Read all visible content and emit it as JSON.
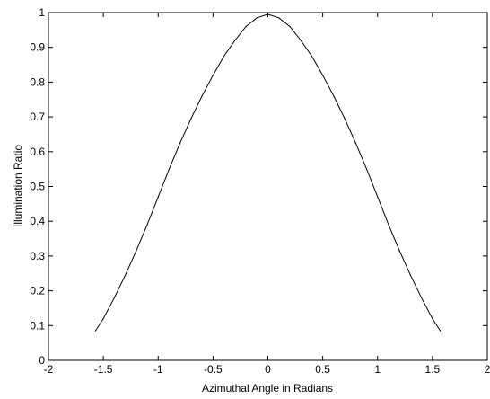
{
  "chart_data": {
    "type": "line",
    "title": "",
    "xlabel": "Azimuthal Angle in Radians",
    "ylabel": "Illumination Ratio",
    "xlim": [
      -2,
      2
    ],
    "ylim": [
      0,
      1
    ],
    "xticks": [
      -2,
      -1.5,
      -1,
      -0.5,
      0,
      0.5,
      1,
      1.5,
      2
    ],
    "yticks": [
      0,
      0.1,
      0.2,
      0.3,
      0.4,
      0.5,
      0.6,
      0.7,
      0.8,
      0.9,
      1
    ],
    "xtick_labels": [
      "-2",
      "-1.5",
      "-1",
      "-0.5",
      "0",
      "0.5",
      "1",
      "1.5",
      "2"
    ],
    "ytick_labels": [
      "0",
      "0.1",
      "0.2",
      "0.3",
      "0.4",
      "0.5",
      "0.6",
      "0.7",
      "0.8",
      "0.9",
      "1"
    ],
    "grid": false,
    "series": [
      {
        "color": "#000000",
        "x": [
          -1.571,
          -1.5,
          -1.4,
          -1.3,
          -1.2,
          -1.1,
          -1.0,
          -0.9,
          -0.8,
          -0.7,
          -0.6,
          -0.5,
          -0.4,
          -0.3,
          -0.2,
          -0.1,
          0.0,
          0.1,
          0.2,
          0.3,
          0.4,
          0.5,
          0.6,
          0.7,
          0.8,
          0.9,
          1.0,
          1.1,
          1.2,
          1.3,
          1.4,
          1.5,
          1.571
        ],
        "y": [
          0.085,
          0.12,
          0.18,
          0.245,
          0.315,
          0.39,
          0.47,
          0.55,
          0.625,
          0.695,
          0.76,
          0.82,
          0.875,
          0.92,
          0.96,
          0.985,
          0.995,
          0.985,
          0.96,
          0.92,
          0.875,
          0.82,
          0.76,
          0.695,
          0.625,
          0.55,
          0.47,
          0.39,
          0.315,
          0.245,
          0.18,
          0.12,
          0.085
        ]
      }
    ]
  }
}
